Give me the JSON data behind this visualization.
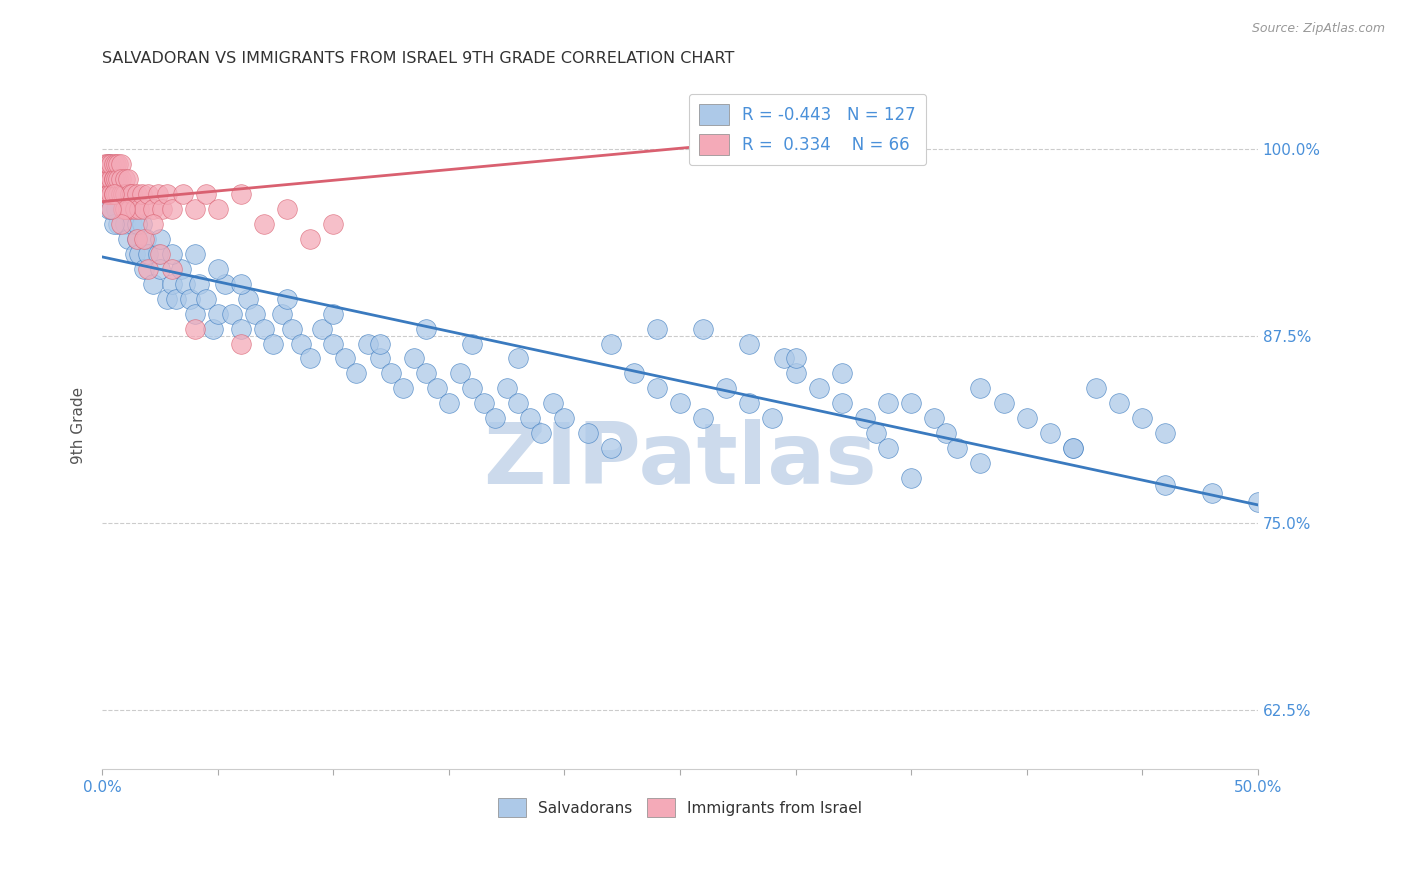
{
  "title": "SALVADORAN VS IMMIGRANTS FROM ISRAEL 9TH GRADE CORRELATION CHART",
  "source": "Source: ZipAtlas.com",
  "ylabel": "9th Grade",
  "ytick_labels": [
    "100.0%",
    "87.5%",
    "75.0%",
    "62.5%"
  ],
  "ytick_values": [
    1.0,
    0.875,
    0.75,
    0.625
  ],
  "xlim": [
    0.0,
    0.5
  ],
  "ylim": [
    0.585,
    1.045
  ],
  "r_salvadoran": -0.443,
  "n_salvadoran": 127,
  "r_israel": 0.334,
  "n_israel": 66,
  "color_salvadoran": "#adc9e8",
  "color_israel": "#f4aab8",
  "trendline_salvadoran": "#3a7abf",
  "trendline_israel": "#d96070",
  "background": "#ffffff",
  "watermark": "ZIPatlas",
  "watermark_color": "#ccdaec",
  "sal_trendline_x0": 0.0,
  "sal_trendline_y0": 0.928,
  "sal_trendline_x1": 0.5,
  "sal_trendline_y1": 0.762,
  "isr_trendline_x0": 0.0,
  "isr_trendline_y0": 0.965,
  "isr_trendline_x1": 0.28,
  "isr_trendline_y1": 1.005,
  "sal_x": [
    0.001,
    0.002,
    0.003,
    0.004,
    0.005,
    0.006,
    0.006,
    0.007,
    0.008,
    0.009,
    0.01,
    0.011,
    0.012,
    0.013,
    0.014,
    0.015,
    0.016,
    0.017,
    0.018,
    0.019,
    0.02,
    0.022,
    0.024,
    0.025,
    0.028,
    0.03,
    0.032,
    0.034,
    0.036,
    0.038,
    0.04,
    0.042,
    0.045,
    0.048,
    0.05,
    0.053,
    0.056,
    0.06,
    0.063,
    0.066,
    0.07,
    0.074,
    0.078,
    0.082,
    0.086,
    0.09,
    0.095,
    0.1,
    0.105,
    0.11,
    0.115,
    0.12,
    0.125,
    0.13,
    0.135,
    0.14,
    0.145,
    0.15,
    0.155,
    0.16,
    0.165,
    0.17,
    0.175,
    0.18,
    0.185,
    0.19,
    0.195,
    0.2,
    0.21,
    0.22,
    0.23,
    0.24,
    0.25,
    0.26,
    0.27,
    0.28,
    0.29,
    0.295,
    0.3,
    0.31,
    0.32,
    0.33,
    0.335,
    0.34,
    0.35,
    0.36,
    0.365,
    0.37,
    0.38,
    0.39,
    0.4,
    0.41,
    0.42,
    0.43,
    0.44,
    0.45,
    0.46,
    0.35,
    0.38,
    0.42,
    0.28,
    0.3,
    0.32,
    0.34,
    0.26,
    0.24,
    0.22,
    0.18,
    0.16,
    0.14,
    0.12,
    0.1,
    0.08,
    0.06,
    0.05,
    0.04,
    0.03,
    0.025,
    0.015,
    0.01,
    0.008,
    0.005,
    0.003,
    0.002,
    0.5,
    0.48,
    0.46
  ],
  "sal_y": [
    0.98,
    0.97,
    0.99,
    0.96,
    0.97,
    0.98,
    0.96,
    0.95,
    0.97,
    0.96,
    0.95,
    0.94,
    0.96,
    0.95,
    0.93,
    0.94,
    0.93,
    0.95,
    0.92,
    0.94,
    0.93,
    0.91,
    0.93,
    0.92,
    0.9,
    0.91,
    0.9,
    0.92,
    0.91,
    0.9,
    0.89,
    0.91,
    0.9,
    0.88,
    0.89,
    0.91,
    0.89,
    0.88,
    0.9,
    0.89,
    0.88,
    0.87,
    0.89,
    0.88,
    0.87,
    0.86,
    0.88,
    0.87,
    0.86,
    0.85,
    0.87,
    0.86,
    0.85,
    0.84,
    0.86,
    0.85,
    0.84,
    0.83,
    0.85,
    0.84,
    0.83,
    0.82,
    0.84,
    0.83,
    0.82,
    0.81,
    0.83,
    0.82,
    0.81,
    0.8,
    0.85,
    0.84,
    0.83,
    0.82,
    0.84,
    0.83,
    0.82,
    0.86,
    0.85,
    0.84,
    0.83,
    0.82,
    0.81,
    0.8,
    0.83,
    0.82,
    0.81,
    0.8,
    0.84,
    0.83,
    0.82,
    0.81,
    0.8,
    0.84,
    0.83,
    0.82,
    0.81,
    0.78,
    0.79,
    0.8,
    0.87,
    0.86,
    0.85,
    0.83,
    0.88,
    0.88,
    0.87,
    0.86,
    0.87,
    0.88,
    0.87,
    0.89,
    0.9,
    0.91,
    0.92,
    0.93,
    0.93,
    0.94,
    0.95,
    0.96,
    0.97,
    0.95,
    0.96,
    0.98,
    0.764,
    0.77,
    0.775
  ],
  "isr_x": [
    0.001,
    0.001,
    0.002,
    0.002,
    0.002,
    0.003,
    0.003,
    0.003,
    0.003,
    0.004,
    0.004,
    0.004,
    0.005,
    0.005,
    0.005,
    0.005,
    0.006,
    0.006,
    0.006,
    0.007,
    0.007,
    0.007,
    0.008,
    0.008,
    0.008,
    0.009,
    0.009,
    0.01,
    0.01,
    0.011,
    0.011,
    0.012,
    0.012,
    0.013,
    0.014,
    0.015,
    0.016,
    0.017,
    0.018,
    0.02,
    0.022,
    0.024,
    0.026,
    0.028,
    0.03,
    0.035,
    0.04,
    0.045,
    0.05,
    0.06,
    0.07,
    0.08,
    0.09,
    0.1,
    0.06,
    0.04,
    0.02,
    0.015,
    0.01,
    0.008,
    0.025,
    0.03,
    0.018,
    0.022,
    0.005,
    0.004
  ],
  "isr_y": [
    0.98,
    0.99,
    0.97,
    0.98,
    0.99,
    0.97,
    0.98,
    0.99,
    0.97,
    0.98,
    0.99,
    0.97,
    0.98,
    0.97,
    0.99,
    0.98,
    0.97,
    0.99,
    0.98,
    0.97,
    0.99,
    0.98,
    0.97,
    0.99,
    0.98,
    0.97,
    0.96,
    0.98,
    0.97,
    0.96,
    0.98,
    0.97,
    0.96,
    0.97,
    0.96,
    0.97,
    0.96,
    0.97,
    0.96,
    0.97,
    0.96,
    0.97,
    0.96,
    0.97,
    0.96,
    0.97,
    0.96,
    0.97,
    0.96,
    0.97,
    0.95,
    0.96,
    0.94,
    0.95,
    0.87,
    0.88,
    0.92,
    0.94,
    0.96,
    0.95,
    0.93,
    0.92,
    0.94,
    0.95,
    0.97,
    0.96
  ]
}
